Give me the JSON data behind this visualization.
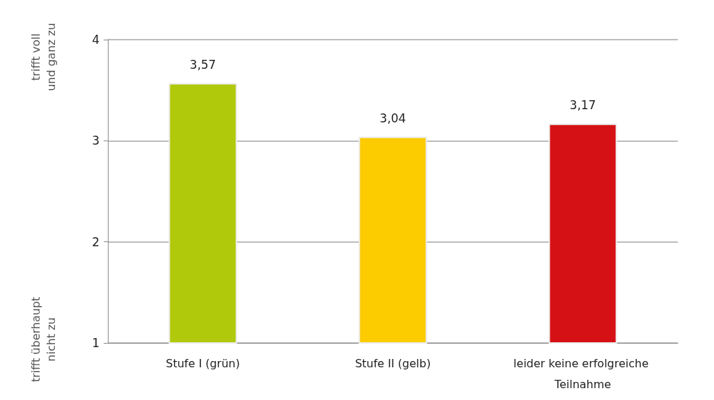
{
  "chart_data": {
    "type": "bar",
    "categories": [
      "Stufe I (grün)",
      "Stufe II (gelb)",
      "leider keine erfolgreiche Teilnahme"
    ],
    "values": [
      3.57,
      3.04,
      3.17
    ],
    "colors": [
      "#b0c90a",
      "#fccb00",
      "#d51116"
    ],
    "value_labels": [
      "3,57",
      "3,04",
      "3,17"
    ],
    "ylim": [
      1,
      4
    ],
    "yticks": [
      1,
      2,
      3,
      4
    ],
    "grid": "y",
    "annotations": [
      "trifft voll\nund ganz zu",
      "trifft überhaupt\nnicht zu"
    ]
  }
}
